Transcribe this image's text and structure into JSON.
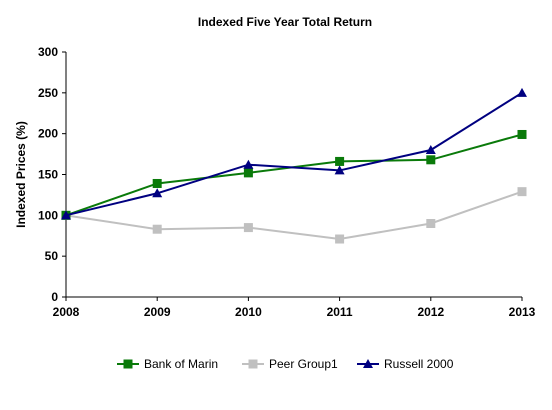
{
  "chart_data": {
    "type": "line",
    "title": "Indexed Five Year Total Return",
    "xlabel": "",
    "ylabel": "Indexed Prices (%)",
    "x": [
      "2008",
      "2009",
      "2010",
      "2011",
      "2012",
      "2013"
    ],
    "ylim": [
      0,
      300
    ],
    "yticks": [
      "0",
      "50",
      "100",
      "150",
      "200",
      "250",
      "300"
    ],
    "grid": false,
    "legend_position": "bottom",
    "series": [
      {
        "name": "Bank of Marin",
        "values": [
          100,
          139,
          152,
          166,
          168,
          199
        ],
        "color": "#0a7a0a",
        "marker": "square"
      },
      {
        "name": "Peer Group1",
        "values": [
          100,
          83,
          85,
          71,
          90,
          129
        ],
        "color": "#c0c0c0",
        "marker": "square"
      },
      {
        "name": "Russell 2000",
        "values": [
          100,
          127,
          162,
          155,
          180,
          250
        ],
        "color": "#000080",
        "marker": "triangle"
      }
    ]
  }
}
